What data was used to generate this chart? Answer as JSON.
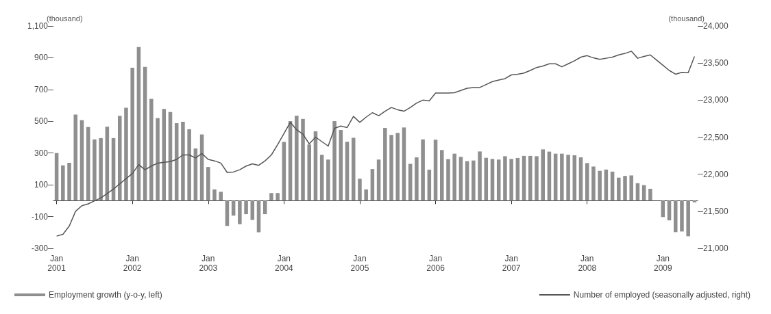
{
  "chart_data": {
    "type": "bar",
    "ylabel": "(thousand)",
    "y2label": "(thousand)",
    "categories": [
      "Jan 2001",
      null,
      null,
      null,
      null,
      null,
      null,
      null,
      null,
      null,
      null,
      null,
      "Jan 2002",
      null,
      null,
      null,
      null,
      null,
      null,
      null,
      null,
      null,
      null,
      null,
      "Jan 2003",
      null,
      null,
      null,
      null,
      null,
      null,
      null,
      null,
      null,
      null,
      null,
      "Jan 2004",
      null,
      null,
      null,
      null,
      null,
      null,
      null,
      null,
      null,
      null,
      null,
      "Jan 2005",
      null,
      null,
      null,
      null,
      null,
      null,
      null,
      null,
      null,
      null,
      null,
      "Jan 2006",
      null,
      null,
      null,
      null,
      null,
      null,
      null,
      null,
      null,
      null,
      null,
      "Jan 2007",
      null,
      null,
      null,
      null,
      null,
      null,
      null,
      null,
      null,
      null,
      null,
      "Jan 2008",
      null,
      null,
      null,
      null,
      null,
      null,
      null,
      null,
      null,
      null,
      null,
      "Jan 2009",
      null,
      null,
      null,
      null,
      null
    ],
    "series": [
      {
        "name": "Employment growth (y-o-y, left)",
        "color": "#8f8f8f",
        "values": [
          300,
          222,
          238,
          542,
          507,
          464,
          386,
          394,
          466,
          394,
          534,
          585,
          837,
          968,
          843,
          641,
          520,
          578,
          558,
          488,
          497,
          450,
          329,
          417,
          212,
          71,
          56,
          -159,
          -94,
          -148,
          -85,
          -121,
          -199,
          -85,
          48,
          48,
          370,
          501,
          535,
          515,
          354,
          437,
          289,
          259,
          501,
          445,
          371,
          396,
          138,
          71,
          199,
          259,
          458,
          414,
          427,
          461,
          232,
          273,
          386,
          195,
          384,
          319,
          262,
          296,
          276,
          249,
          253,
          310,
          270,
          263,
          259,
          280,
          263,
          269,
          282,
          282,
          280,
          323,
          309,
          296,
          296,
          289,
          286,
          273,
          237,
          215,
          188,
          196,
          183,
          145,
          156,
          159,
          110,
          98,
          75,
          0,
          -103,
          -124,
          -198,
          -194,
          -224,
          -10
        ]
      },
      {
        "name": "Number of employed (seasonally adjusted, right)",
        "type": "line",
        "axis": "y2",
        "color": "#555555",
        "values": [
          21165,
          21190,
          21300,
          21500,
          21575,
          21600,
          21640,
          21680,
          21740,
          21800,
          21870,
          21940,
          22010,
          22130,
          22060,
          22110,
          22150,
          22160,
          22170,
          22200,
          22260,
          22260,
          22220,
          22280,
          22200,
          22180,
          22150,
          22025,
          22030,
          22060,
          22110,
          22140,
          22120,
          22180,
          22260,
          22400,
          22550,
          22700,
          22600,
          22540,
          22410,
          22500,
          22440,
          22380,
          22620,
          22650,
          22630,
          22780,
          22700,
          22770,
          22830,
          22790,
          22850,
          22900,
          22870,
          22850,
          22900,
          22960,
          23000,
          22990,
          23095,
          23095,
          23095,
          23100,
          23130,
          23160,
          23170,
          23170,
          23210,
          23250,
          23270,
          23290,
          23340,
          23350,
          23365,
          23400,
          23440,
          23460,
          23490,
          23490,
          23450,
          23490,
          23530,
          23580,
          23600,
          23570,
          23550,
          23565,
          23580,
          23610,
          23630,
          23660,
          23565,
          23590,
          23610,
          23540,
          23470,
          23400,
          23350,
          23375,
          23370,
          23590
        ]
      }
    ],
    "ylim": [
      -300,
      1100
    ],
    "yticks": [
      -300,
      -100,
      100,
      300,
      500,
      700,
      900,
      {
        "value": 1100,
        "label": "1,100"
      }
    ],
    "y2lim": [
      21000,
      24000
    ],
    "y2ticks": [
      {
        "value": 21000,
        "label": "21,000"
      },
      {
        "value": 21500,
        "label": "21,500"
      },
      {
        "value": 22000,
        "label": "22,000"
      },
      {
        "value": 22500,
        "label": "22,500"
      },
      {
        "value": 23000,
        "label": "23,000"
      },
      {
        "value": 23500,
        "label": "23,500"
      },
      {
        "value": 24000,
        "label": "24,000"
      }
    ],
    "legend": "bottom",
    "marker": "none",
    "line_style": "solid"
  }
}
